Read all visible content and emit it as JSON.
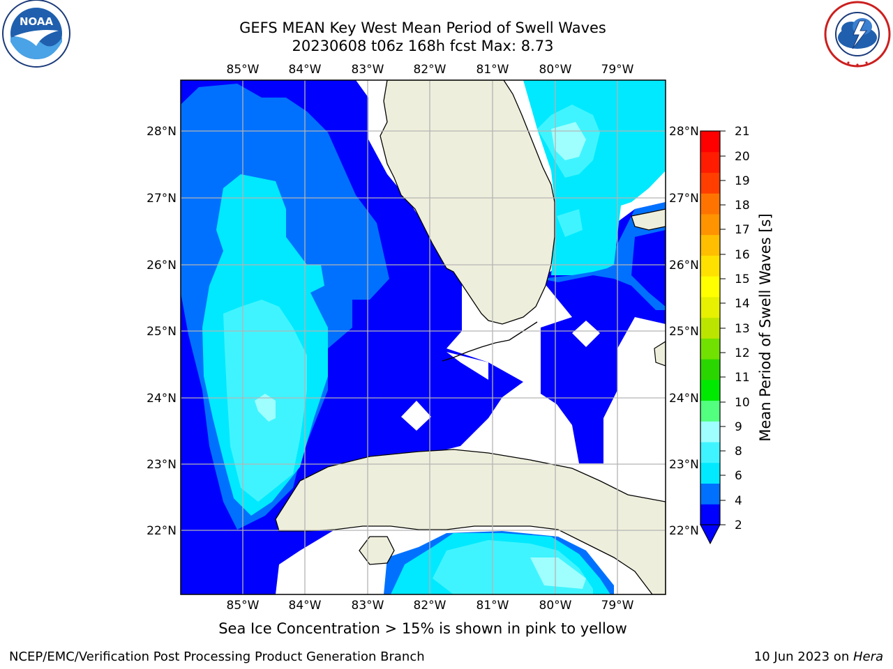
{
  "header": {
    "title_line1": "GEFS MEAN Key West Mean Period of Swell Waves",
    "title_line2": "20230608 t06z 168h fcst   Max: 8.73"
  },
  "logos": {
    "noaa_text": "NOAA",
    "noaa_ring_text": "NATIONAL OCEANIC AND ATMOSPHERIC ADMINISTRATION · U.S. DEPARTMENT OF COMMERCE",
    "nws_ring_text": "NATIONAL WEATHER SERVICE"
  },
  "map": {
    "lon_labels": [
      "85°W",
      "84°W",
      "83°W",
      "82°W",
      "81°W",
      "80°W",
      "79°W"
    ],
    "lat_labels": [
      "28°N",
      "27°N",
      "26°N",
      "25°N",
      "24°N",
      "23°N",
      "22°N"
    ],
    "lon_range": [
      -86.0,
      -78.3
    ],
    "lat_range": [
      21.0,
      28.8
    ],
    "land_color": "#eeeedc",
    "grid_color": "#b4b4b4"
  },
  "colorbar": {
    "label": "Mean Period of Swell Waves [s]",
    "ticks": [
      "21",
      "20",
      "19",
      "18",
      "17",
      "16",
      "15",
      "14",
      "13",
      "12",
      "11",
      "10",
      "9",
      "8",
      "6",
      "4",
      "2"
    ],
    "colors": [
      "#0000ff",
      "#0071ff",
      "#00e9ff",
      "#40f4ff",
      "#9fffff",
      "#52ff7e",
      "#00e900",
      "#2ad600",
      "#70e100",
      "#bbe500",
      "#e6f000",
      "#ffff00",
      "#ffe100",
      "#ffbe00",
      "#ff9300",
      "#ff7400",
      "#ff3e00",
      "#ff1c00",
      "#ff0000"
    ]
  },
  "footer": {
    "note": "Sea Ice Concentration > 15% is shown in pink to yellow",
    "left": "NCEP/EMC/Verification Post Processing Product Generation Branch",
    "right_date": "10 Jun 2023 on ",
    "right_host": "Hera"
  }
}
